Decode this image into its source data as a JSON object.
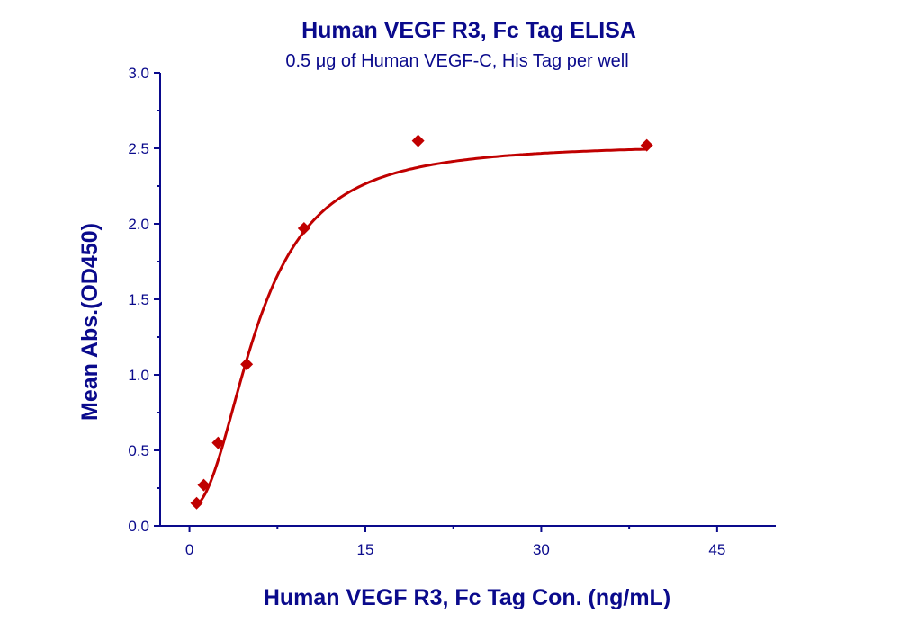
{
  "chart_data": {
    "type": "scatter",
    "title": "Human VEGF R3, Fc Tag ELISA",
    "subtitle": "0.5 μg of Human VEGF-C, His Tag per well",
    "xlabel": "Human VEGF R3, Fc Tag Con. (ng/mL)",
    "ylabel": "Mean Abs.(OD450)",
    "xlim": [
      -2.5,
      50
    ],
    "ylim": [
      0,
      3.0
    ],
    "xticks": [
      0,
      15,
      30,
      45
    ],
    "xtick_labels": [
      "0",
      "15",
      "30",
      "45"
    ],
    "yticks": [
      0,
      0.5,
      1.0,
      1.5,
      2.0,
      2.5,
      3.0
    ],
    "ytick_labels": [
      "0.0",
      "0.5",
      "1.0",
      "1.5",
      "2.0",
      "2.5",
      "3.0"
    ],
    "grid": false,
    "series": [
      {
        "x": [
          0.61,
          1.22,
          2.44,
          4.88,
          9.77,
          19.5,
          39
        ],
        "y": [
          0.15,
          0.27,
          0.55,
          1.07,
          1.97,
          2.55,
          2.52
        ],
        "marker": "diamond",
        "fit": "sigmoidal curve",
        "color": "#c00000"
      }
    ],
    "axis_color": "#0a0a8c"
  }
}
